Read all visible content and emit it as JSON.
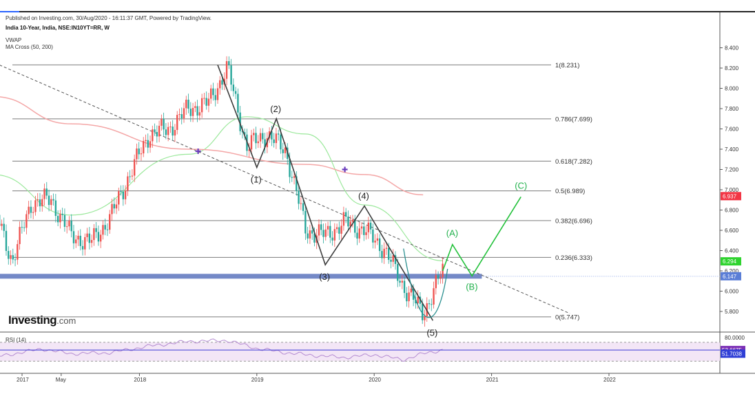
{
  "header": {
    "published": "Published on Investing.com, 30/Aug/2020 - 16:11:37 GMT, Powered by TradingView.",
    "symbol": "India 10-Year, India, NSE:IN10YT=RR, W",
    "indicators": [
      "VWAP",
      "MA Cross (50, 200)"
    ]
  },
  "logo": {
    "main": "Investing",
    "suffix": ".com"
  },
  "colors": {
    "up": "#26a69a",
    "down": "#ef5350",
    "ma50": "#9be89b",
    "ma200": "#f4a6a6",
    "support": "#6d83c4",
    "rsi": "#b48ad1",
    "rsi_band": "#f3e6f6",
    "wave": "#3c3c3c",
    "projection": "#22c13a"
  },
  "chart_data": [
    {
      "type": "line",
      "title": "India 10-Year, India, NSE:IN10YT=RR, W",
      "x_tick_labels": [
        "2017",
        "May",
        "2018",
        "2019",
        "2020",
        "2021",
        "2022"
      ],
      "y_tick_labels": [
        "8.400",
        "8.200",
        "8.000",
        "7.800",
        "7.600",
        "7.400",
        "7.200",
        "7.000",
        "6.800",
        "6.600",
        "6.400",
        "6.200",
        "6.000",
        "5.800"
      ],
      "ylim": [
        5.7,
        8.5
      ],
      "close_series": {
        "name": "",
        "x": [
          "2016-10",
          "2016-12",
          "2017-02",
          "2017-04",
          "2017-06",
          "2017-08",
          "2017-10",
          "2017-12",
          "2018-02",
          "2018-04",
          "2018-06",
          "2018-08",
          "2018-10",
          "2018-12",
          "2019-02",
          "2019-04",
          "2019-06",
          "2019-08",
          "2019-10",
          "2019-12",
          "2020-02",
          "2020-04",
          "2020-06",
          "2020-08"
        ],
        "values": [
          6.85,
          6.3,
          6.88,
          6.9,
          6.55,
          6.48,
          6.72,
          7.15,
          7.55,
          7.6,
          7.8,
          7.85,
          8.2,
          7.42,
          7.55,
          7.38,
          6.6,
          6.55,
          6.68,
          6.6,
          6.42,
          6.05,
          5.78,
          6.2
        ]
      },
      "moving_averages": [
        {
          "name": "MA 50",
          "x": [
            "2016-10",
            "2017-06",
            "2018-06",
            "2018-12",
            "2019-06",
            "2019-12",
            "2020-08"
          ],
          "values": [
            7.15,
            6.75,
            7.35,
            7.72,
            7.55,
            6.85,
            6.3
          ]
        },
        {
          "name": "MA 200",
          "x": [
            "2016-10",
            "2017-06",
            "2018-06",
            "2019-06",
            "2019-12",
            "2020-06"
          ],
          "values": [
            7.92,
            7.65,
            7.4,
            7.25,
            7.15,
            6.95
          ]
        }
      ],
      "ma_cross_markers": [
        {
          "x": "2018-07",
          "y": 7.38
        },
        {
          "x": "2019-10",
          "y": 7.2
        }
      ],
      "fibonacci_levels": [
        {
          "label": "1(8.231)",
          "value": 8.231
        },
        {
          "label": "0.786(7.699)",
          "value": 7.699
        },
        {
          "label": "0.618(7.282)",
          "value": 7.282
        },
        {
          "label": "0.5(6.989)",
          "value": 6.989
        },
        {
          "label": "0.382(6.696)",
          "value": 6.696
        },
        {
          "label": "0.236(6.333)",
          "value": 6.333
        },
        {
          "label": "0(5.747)",
          "value": 5.747
        }
      ],
      "trendline": {
        "from": {
          "x": "2016-10",
          "y": 8.23
        },
        "to": {
          "x": "2021-09",
          "y": 5.78
        }
      },
      "support_band": {
        "value": 6.147,
        "x_from": "2016-10",
        "x_to": "2020-12"
      },
      "elliott_waves": [
        {
          "label": "(1)",
          "x": "2019-01",
          "y": 7.22
        },
        {
          "label": "(2)",
          "x": "2019-03",
          "y": 7.7
        },
        {
          "label": "(3)",
          "x": "2019-08",
          "y": 6.26
        },
        {
          "label": "(4)",
          "x": "2019-12",
          "y": 6.84
        },
        {
          "label": "(5)",
          "x": "2020-07",
          "y": 5.71
        }
      ],
      "wave_path": [
        {
          "x": "2018-09",
          "y": 8.231
        },
        {
          "x": "2019-01",
          "y": 7.22
        },
        {
          "x": "2019-03",
          "y": 7.7
        },
        {
          "x": "2019-08",
          "y": 6.26
        },
        {
          "x": "2019-12",
          "y": 6.84
        },
        {
          "x": "2020-07",
          "y": 5.71
        }
      ],
      "projection": [
        {
          "label": "",
          "x": "2020-08",
          "y": 6.2
        },
        {
          "label": "(A)",
          "x": "2020-09",
          "y": 6.46
        },
        {
          "label": "(B)",
          "x": "2020-11",
          "y": 6.15
        },
        {
          "label": "(C)",
          "x": "2021-04",
          "y": 6.93
        }
      ],
      "price_tags": [
        {
          "label": "6.937",
          "value": 6.937,
          "color": "#f23645"
        },
        {
          "label": "6.294",
          "value": 6.294,
          "color": "#2fd32f"
        },
        {
          "label": "6.147",
          "value": 6.147,
          "color": "#5b7ed6"
        }
      ]
    },
    {
      "type": "line",
      "title": "RSI (14)",
      "y_tick_labels": [
        "80.0000"
      ],
      "band": [
        30,
        70
      ],
      "ylim": [
        20,
        80
      ],
      "series": {
        "name": "",
        "x": [
          "2016-10",
          "2017-03",
          "2017-06",
          "2017-10",
          "2018-02",
          "2018-06",
          "2018-10",
          "2019-01",
          "2019-04",
          "2019-07",
          "2019-10",
          "2020-01",
          "2020-04",
          "2020-06",
          "2020-08"
        ],
        "values": [
          38,
          56,
          46,
          48,
          62,
          72,
          74,
          57,
          48,
          42,
          38,
          44,
          33,
          46,
          54
        ]
      },
      "price_tags": [
        {
          "label": "53.6675",
          "value": 53.6675,
          "color": "#7b2fb5"
        },
        {
          "label": "51.7038",
          "value": 51.7038,
          "color": "#2f3fd6"
        }
      ]
    }
  ]
}
